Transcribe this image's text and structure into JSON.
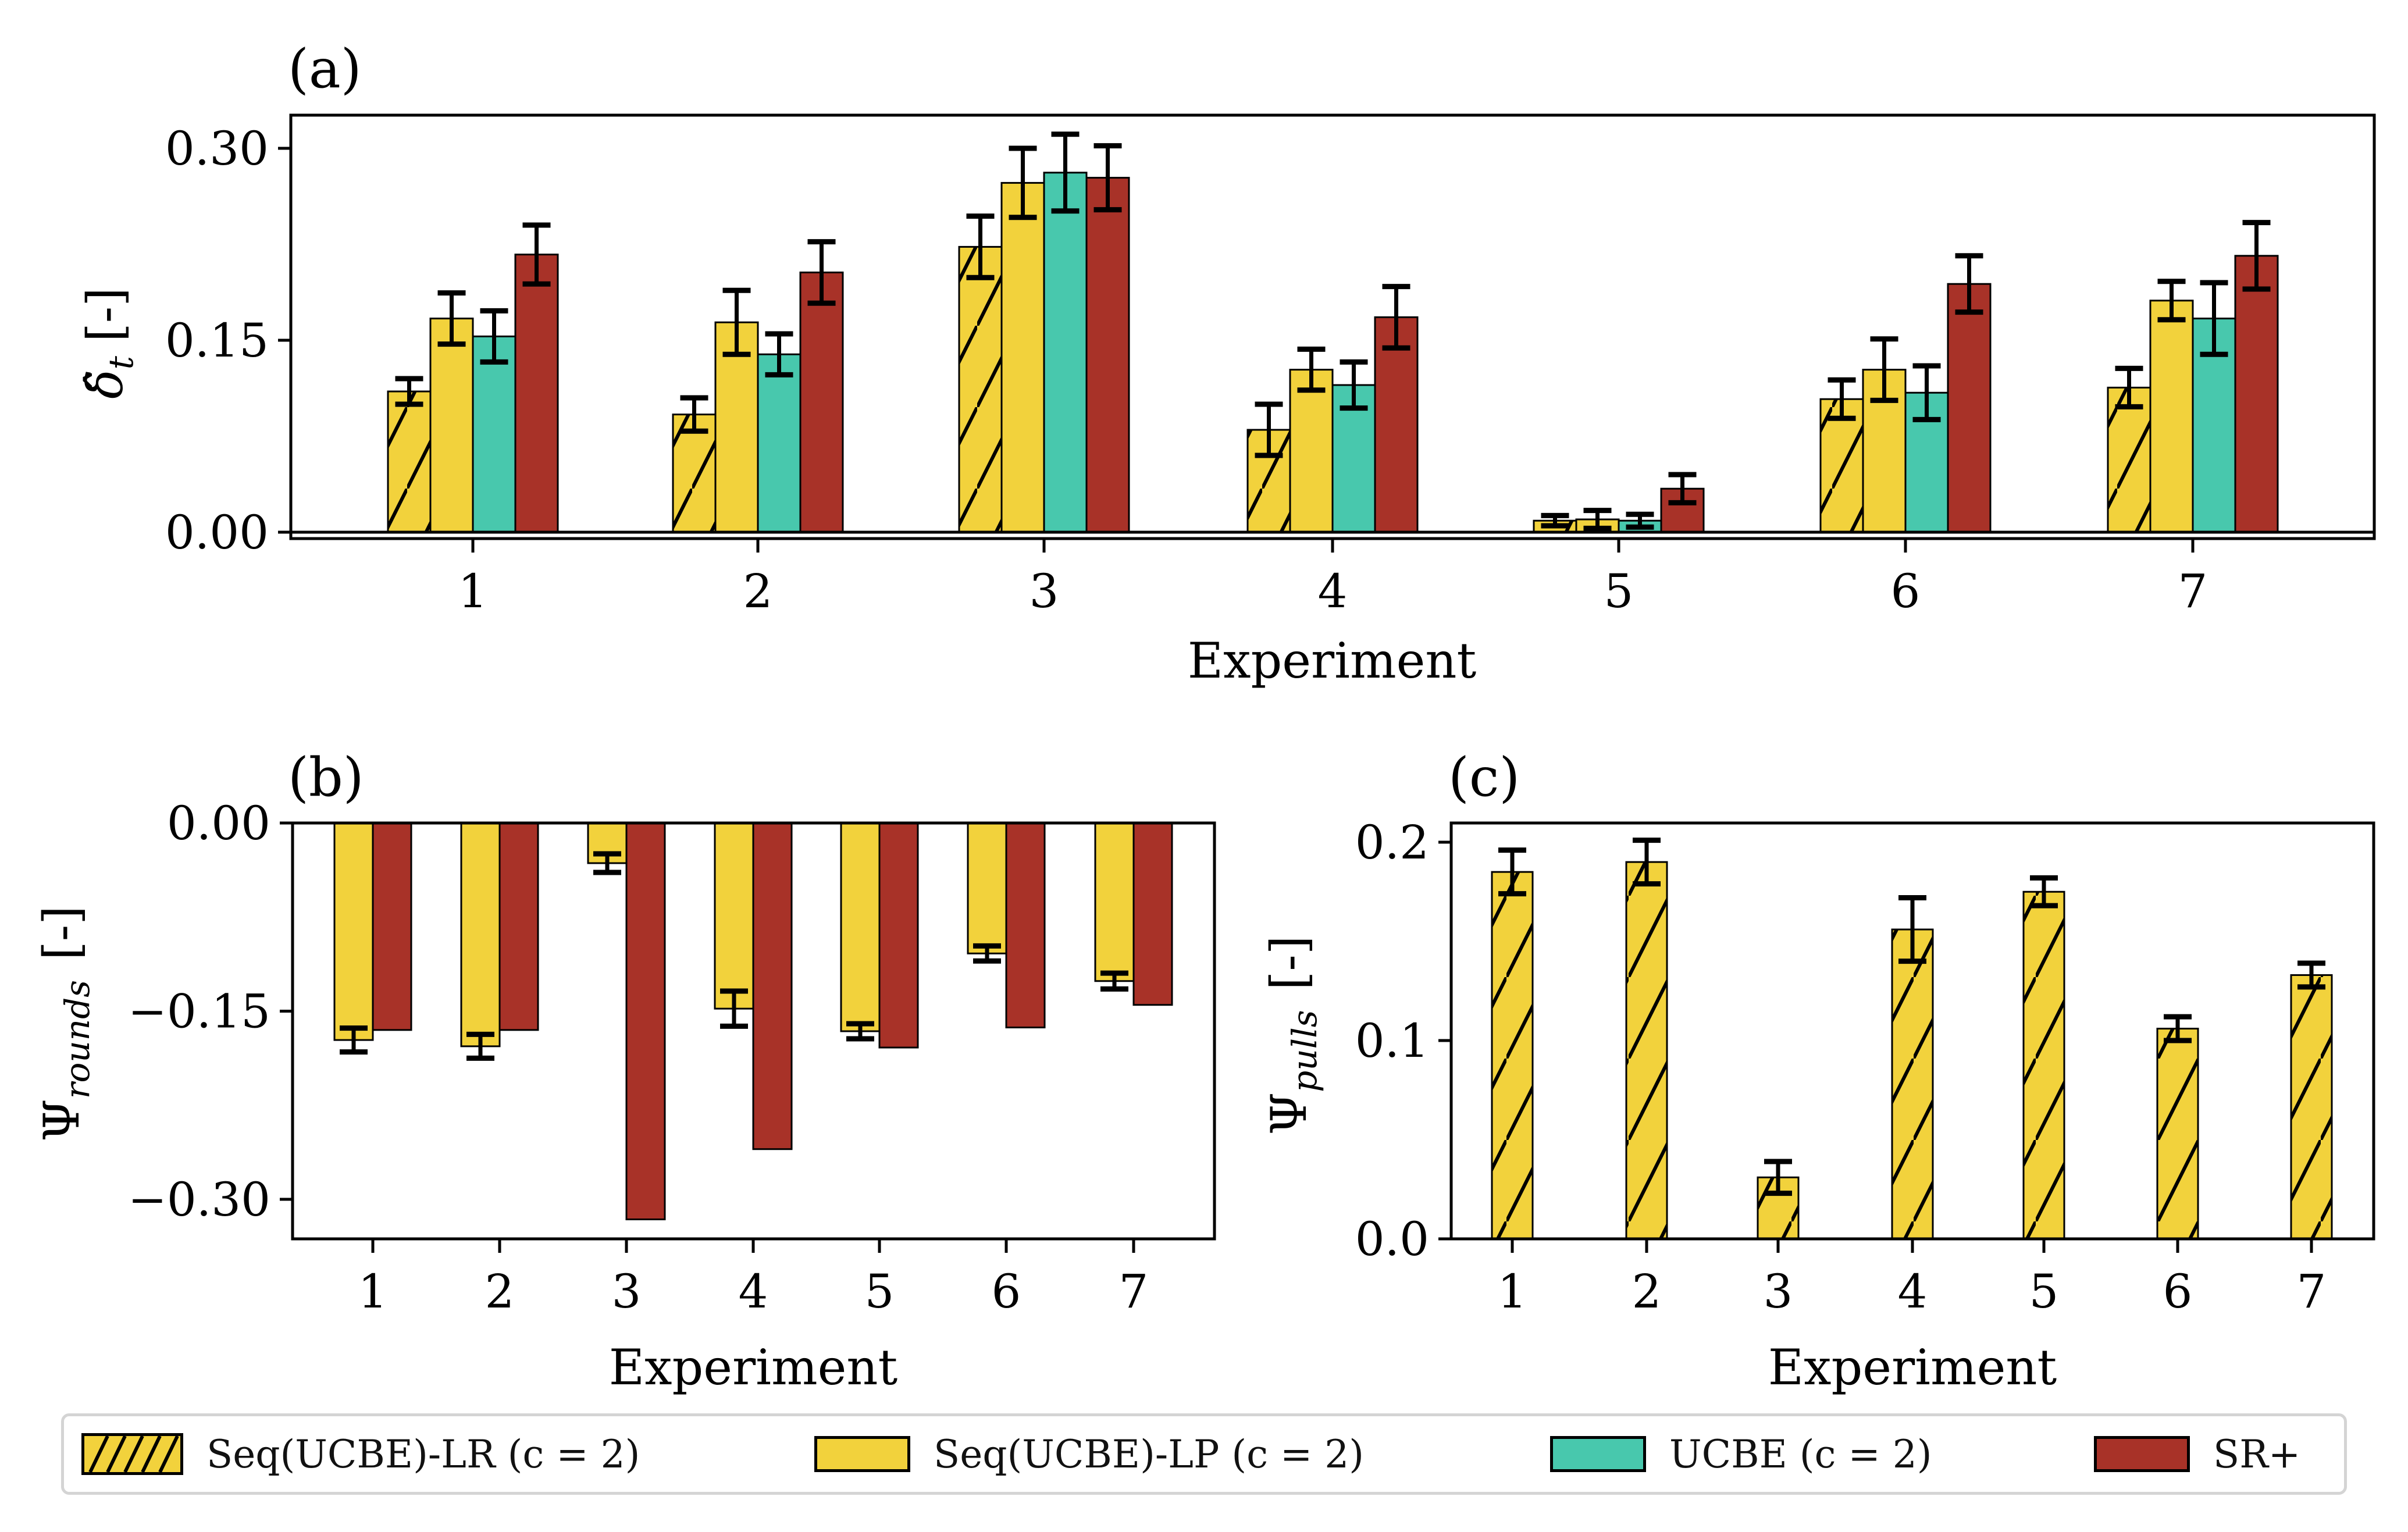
{
  "figure": {
    "colors": {
      "seq_lr": "#f2d23c",
      "seq_lp": "#f2d23c",
      "ucbe": "#48c8ad",
      "sr_plus": "#a83228",
      "axis": "#000000"
    }
  },
  "legend": {
    "items": [
      {
        "label": "Seq(UCBE)-LR (c = 2)",
        "color": "#f2d23c",
        "hatch": true
      },
      {
        "label": "Seq(UCBE)-LP (c = 2)",
        "color": "#f2d23c",
        "hatch": false
      },
      {
        "label": "UCBE (c = 2)",
        "color": "#48c8ad",
        "hatch": false
      },
      {
        "label": "SR+",
        "color": "#a83228",
        "hatch": false
      }
    ]
  },
  "chart_data": [
    {
      "panel": "(a)",
      "type": "bar",
      "xlabel": "Experiment",
      "ylabel": "δ̂_t [-]",
      "categories": [
        "1",
        "2",
        "3",
        "4",
        "5",
        "6",
        "7"
      ],
      "ylim": [
        0.0,
        0.33
      ],
      "yticks": [
        0.0,
        0.15,
        0.3
      ],
      "ytick_labels": [
        "0.00",
        "0.15",
        "0.30"
      ],
      "grid": false,
      "series": [
        {
          "name": "Seq(UCBE)-LR (c = 2)",
          "color": "#f2d23c",
          "hatch": true,
          "values": [
            0.11,
            0.092,
            0.223,
            0.08,
            0.009,
            0.104,
            0.113
          ],
          "errors": [
            0.01,
            0.013,
            0.024,
            0.02,
            0.004,
            0.015,
            0.015
          ]
        },
        {
          "name": "Seq(UCBE)-LP (c = 2)",
          "color": "#f2d23c",
          "hatch": false,
          "values": [
            0.167,
            0.164,
            0.273,
            0.127,
            0.01,
            0.127,
            0.181
          ],
          "errors": [
            0.02,
            0.025,
            0.027,
            0.016,
            0.007,
            0.024,
            0.015
          ]
        },
        {
          "name": "UCBE (c = 2)",
          "color": "#48c8ad",
          "hatch": false,
          "values": [
            0.153,
            0.139,
            0.281,
            0.115,
            0.009,
            0.109,
            0.167
          ],
          "errors": [
            0.02,
            0.016,
            0.03,
            0.018,
            0.005,
            0.021,
            0.028
          ]
        },
        {
          "name": "SR+",
          "color": "#a83228",
          "hatch": false,
          "values": [
            0.217,
            0.203,
            0.277,
            0.168,
            0.034,
            0.194,
            0.216
          ],
          "errors": [
            0.023,
            0.024,
            0.025,
            0.024,
            0.011,
            0.022,
            0.026
          ]
        }
      ]
    },
    {
      "panel": "(b)",
      "type": "bar",
      "xlabel": "Experiment",
      "ylabel": "Ψ_rounds [-]",
      "categories": [
        "1",
        "2",
        "3",
        "4",
        "5",
        "6",
        "7"
      ],
      "ylim": [
        -0.33,
        0.0
      ],
      "yticks": [
        0.0,
        -0.15,
        -0.3
      ],
      "ytick_labels": [
        "0.00",
        "−0.15",
        "−0.30"
      ],
      "grid": false,
      "series": [
        {
          "name": "Seq(UCBE)-LP (c = 2)",
          "color": "#f2d23c",
          "hatch": false,
          "values": [
            -0.173,
            -0.178,
            -0.032,
            -0.148,
            -0.166,
            -0.104,
            -0.126
          ],
          "errors": [
            0.0095,
            0.0095,
            0.0074,
            0.014,
            0.006,
            0.006,
            0.0063
          ]
        },
        {
          "name": "SR+",
          "color": "#a83228",
          "hatch": false,
          "values": [
            -0.165,
            -0.165,
            -0.316,
            -0.26,
            -0.179,
            -0.163,
            -0.145
          ],
          "errors": [
            null,
            null,
            null,
            null,
            null,
            null,
            null
          ]
        }
      ]
    },
    {
      "panel": "(c)",
      "type": "bar",
      "xlabel": "Experiment",
      "ylabel": "Ψ_pulls [-]",
      "categories": [
        "1",
        "2",
        "3",
        "4",
        "5",
        "6",
        "7"
      ],
      "ylim": [
        0.0,
        0.21
      ],
      "yticks": [
        0.0,
        0.1,
        0.2
      ],
      "ytick_labels": [
        "0.0",
        "0.1",
        "0.2"
      ],
      "grid": false,
      "series": [
        {
          "name": "Seq(UCBE)-LR (c = 2)",
          "color": "#f2d23c",
          "hatch": true,
          "values": [
            0.185,
            0.19,
            0.031,
            0.156,
            0.175,
            0.106,
            0.133
          ],
          "errors": [
            0.011,
            0.011,
            0.008,
            0.016,
            0.007,
            0.006,
            0.006
          ]
        }
      ]
    }
  ],
  "labels": {
    "panel_a": "(a)",
    "panel_b": "(b)",
    "panel_c": "(c)",
    "xlabel_a": "Experiment",
    "xlabel_b": "Experiment",
    "xlabel_c": "Experiment",
    "ylabel_a_symbol": "δ̂",
    "ylabel_a_sub": "t",
    "ylabel_b_symbol": "Ψ",
    "ylabel_b_sub": "rounds",
    "ylabel_c_symbol": "Ψ",
    "ylabel_c_sub": "pulls",
    "ylabel_unit": "[-]"
  }
}
